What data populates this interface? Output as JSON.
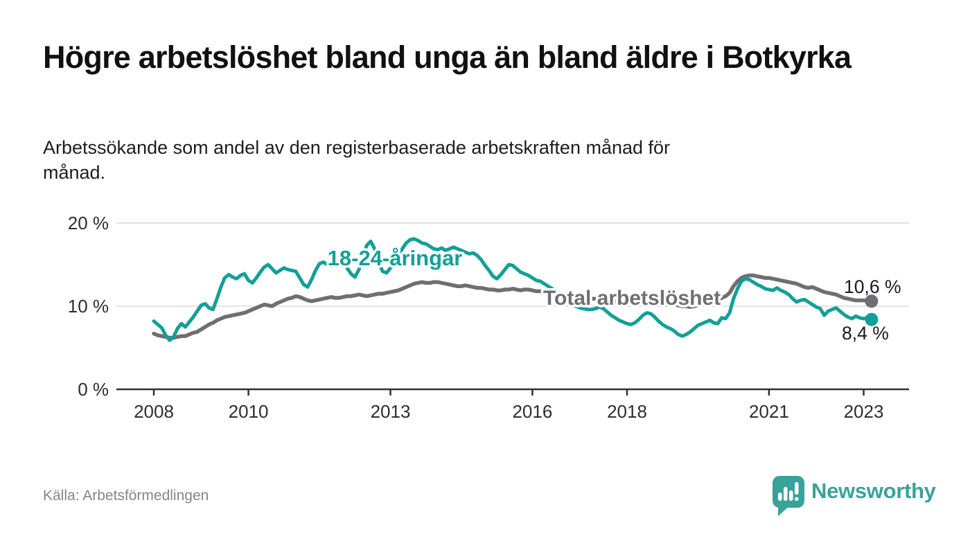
{
  "header": {
    "title": "Högre arbetslöshet bland unga än bland äldre i Botkyrka",
    "subtitle": "Arbetssökande som andel av den registerbaserade arbetskraften månad för månad."
  },
  "footer": {
    "source": "Källa: Arbetsförmedlingen",
    "brand": "Newsworthy"
  },
  "colors": {
    "accent_teal": "#12a096",
    "logo_teal": "#3aa29a",
    "line_gray": "#6f6f73",
    "axis": "#303030",
    "grid": "#dadada",
    "tick_text": "#2e2e2e",
    "value_text": "#1a1a1a"
  },
  "chart_data": {
    "type": "line",
    "unit": "%",
    "frequency": "monthly",
    "start": "2008-01",
    "end": "2023-03",
    "grid": "horizontal-only",
    "legend_position": "inline-labels",
    "ylim": [
      0,
      21
    ],
    "y_ticks": [
      {
        "value": 0,
        "label": "0 %"
      },
      {
        "value": 10,
        "label": "10 %"
      },
      {
        "value": 20,
        "label": "20 %"
      }
    ],
    "x_ticks": [
      {
        "year": 2008,
        "label": "2008"
      },
      {
        "year": 2010,
        "label": "2010"
      },
      {
        "year": 2013,
        "label": "2013"
      },
      {
        "year": 2016,
        "label": "2016"
      },
      {
        "year": 2018,
        "label": "2018"
      },
      {
        "year": 2021,
        "label": "2021"
      },
      {
        "year": 2023,
        "label": "2023"
      }
    ],
    "series": [
      {
        "name": "Total arbetslöshet",
        "color": "#6f6f73",
        "end_label": "10,6 %",
        "end_value": 10.6,
        "values": [
          6.7,
          6.5,
          6.4,
          6.3,
          6.2,
          6.2,
          6.3,
          6.4,
          6.4,
          6.6,
          6.8,
          6.9,
          7.2,
          7.5,
          7.8,
          8.0,
          8.3,
          8.5,
          8.7,
          8.8,
          8.9,
          9.0,
          9.1,
          9.2,
          9.4,
          9.6,
          9.8,
          10.0,
          10.2,
          10.1,
          10.0,
          10.3,
          10.5,
          10.7,
          10.9,
          11.0,
          11.2,
          11.1,
          10.9,
          10.7,
          10.6,
          10.7,
          10.8,
          10.9,
          11.0,
          11.1,
          11.0,
          11.0,
          11.1,
          11.2,
          11.2,
          11.3,
          11.4,
          11.3,
          11.2,
          11.3,
          11.4,
          11.5,
          11.5,
          11.6,
          11.7,
          11.8,
          11.9,
          12.1,
          12.3,
          12.5,
          12.7,
          12.8,
          12.9,
          12.8,
          12.8,
          12.9,
          12.9,
          12.8,
          12.7,
          12.6,
          12.5,
          12.4,
          12.4,
          12.5,
          12.4,
          12.3,
          12.2,
          12.2,
          12.1,
          12.0,
          12.0,
          11.9,
          11.9,
          12.0,
          12.0,
          12.1,
          12.0,
          11.9,
          12.0,
          12.0,
          11.9,
          11.8,
          11.8,
          11.7,
          11.6,
          11.6,
          11.5,
          11.4,
          11.4,
          11.3,
          11.3,
          11.2,
          11.1,
          11.0,
          11.0,
          10.9,
          10.9,
          10.8,
          10.8,
          10.7,
          10.7,
          10.6,
          10.5,
          10.5,
          10.4,
          10.4,
          10.4,
          10.3,
          10.3,
          10.3,
          10.3,
          10.2,
          10.2,
          10.2,
          10.2,
          10.2,
          10.2,
          10.1,
          10.0,
          10.0,
          9.9,
          10.0,
          10.1,
          10.2,
          10.3,
          10.4,
          10.5,
          10.7,
          11.0,
          11.2,
          11.6,
          12.4,
          13.0,
          13.4,
          13.6,
          13.7,
          13.7,
          13.6,
          13.5,
          13.4,
          13.4,
          13.3,
          13.2,
          13.1,
          13.0,
          12.9,
          12.8,
          12.7,
          12.5,
          12.3,
          12.2,
          12.3,
          12.1,
          11.9,
          11.7,
          11.6,
          11.5,
          11.4,
          11.2,
          11.0,
          10.9,
          10.8,
          10.7,
          10.7,
          10.7,
          10.6,
          10.6
        ]
      },
      {
        "name": "18-24-åringar",
        "color": "#12a096",
        "end_label": "8,4 %",
        "end_value": 8.4,
        "values": [
          8.2,
          7.8,
          7.4,
          6.5,
          5.9,
          6.3,
          7.3,
          7.9,
          7.5,
          8.1,
          8.7,
          9.4,
          10.1,
          10.3,
          9.8,
          9.6,
          10.9,
          12.3,
          13.4,
          13.8,
          13.5,
          13.3,
          13.7,
          13.9,
          13.1,
          12.8,
          13.4,
          14.1,
          14.7,
          15.0,
          14.5,
          14.0,
          14.3,
          14.6,
          14.4,
          14.3,
          14.2,
          13.4,
          12.6,
          12.3,
          13.2,
          14.3,
          15.1,
          15.3,
          15.0,
          14.8,
          15.2,
          15.5,
          15.2,
          14.6,
          13.9,
          13.5,
          14.4,
          16.0,
          17.3,
          17.8,
          16.9,
          15.3,
          14.2,
          14.0,
          14.6,
          15.3,
          16.1,
          16.9,
          17.6,
          18.0,
          18.1,
          17.9,
          17.6,
          17.5,
          17.2,
          16.9,
          16.8,
          17.0,
          16.7,
          16.9,
          17.1,
          16.9,
          16.7,
          16.5,
          16.3,
          16.4,
          16.1,
          15.6,
          14.9,
          14.3,
          13.6,
          13.3,
          13.8,
          14.4,
          15.0,
          14.9,
          14.5,
          14.1,
          13.9,
          13.7,
          13.4,
          13.1,
          13.0,
          12.7,
          12.4,
          12.1,
          11.7,
          11.3,
          10.9,
          10.6,
          10.3,
          10.0,
          9.8,
          9.7,
          9.6,
          9.6,
          9.7,
          9.9,
          9.7,
          9.3,
          8.9,
          8.6,
          8.3,
          8.1,
          7.9,
          7.8,
          8.0,
          8.4,
          8.9,
          9.2,
          9.1,
          8.7,
          8.2,
          7.8,
          7.5,
          7.3,
          7.0,
          6.6,
          6.4,
          6.6,
          6.9,
          7.3,
          7.7,
          7.9,
          8.1,
          8.3,
          8.0,
          7.9,
          8.6,
          8.5,
          9.2,
          10.9,
          12.1,
          13.0,
          13.3,
          13.2,
          12.9,
          12.6,
          12.4,
          12.1,
          12.0,
          11.9,
          12.2,
          11.9,
          11.7,
          11.4,
          10.9,
          10.5,
          10.7,
          10.8,
          10.5,
          10.2,
          9.9,
          9.7,
          8.9,
          9.4,
          9.6,
          9.8,
          9.4,
          9.0,
          8.7,
          8.5,
          8.8,
          8.6,
          8.5,
          8.6,
          8.4
        ]
      }
    ]
  }
}
